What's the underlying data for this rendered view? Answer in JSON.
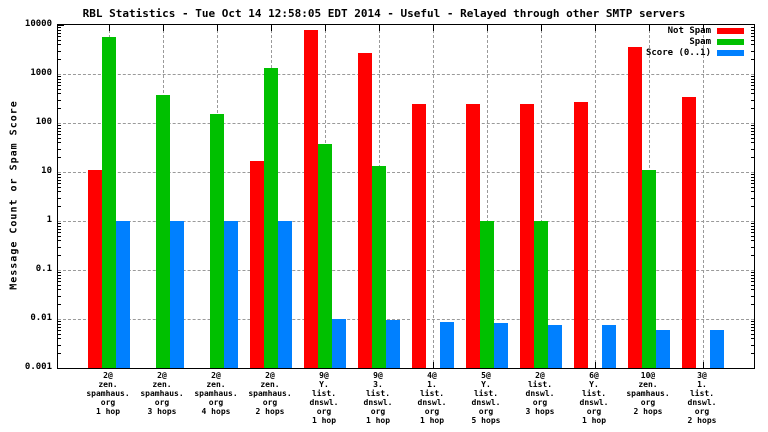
{
  "chart_data": {
    "type": "bar",
    "title": "RBL Statistics - Tue Oct 14 12:58:05 EDT 2014 - Useful - Relayed through other SMTP servers",
    "ylabel": "Message Count or Spam Score",
    "xlabel": "",
    "scale": "log",
    "ylim": [
      0.001,
      10000
    ],
    "grid": true,
    "legend_position": "top-right",
    "ytick_labels": [
      "10000",
      "1000",
      "100",
      "10",
      "1",
      "0.1",
      "0.01",
      "0.001"
    ],
    "categories": [
      [
        "2@",
        "zen.",
        "spamhaus.",
        "org",
        "1 hop"
      ],
      [
        "2@",
        "zen.",
        "spamhaus.",
        "org",
        "3 hops"
      ],
      [
        "2@",
        "zen.",
        "spamhaus.",
        "org",
        "4 hops"
      ],
      [
        "2@",
        "zen.",
        "spamhaus.",
        "org",
        "2 hops"
      ],
      [
        "9@",
        "Y.",
        "list.",
        "dnswl.",
        "org",
        "1 hop"
      ],
      [
        "9@",
        "3.",
        "list.",
        "dnswl.",
        "org",
        "1 hop"
      ],
      [
        "4@",
        "1.",
        "list.",
        "dnswl.",
        "org",
        "1 hop"
      ],
      [
        "5@",
        "Y.",
        "list.",
        "dnswl.",
        "org",
        "5 hops"
      ],
      [
        "2@",
        "list.",
        "dnswl.",
        "org",
        "3 hops"
      ],
      [
        "6@",
        "Y.",
        "list.",
        "dnswl.",
        "org",
        "1 hop"
      ],
      [
        "10@",
        "zen.",
        "spamhaus.",
        "org",
        "2 hops"
      ],
      [
        "3@",
        "1.",
        "list.",
        "dnswl.",
        "org",
        "2 hops"
      ]
    ],
    "series": [
      {
        "name": "Not Spam",
        "color": "#ff0000",
        "values": [
          11,
          null,
          null,
          17,
          7800,
          2700,
          240,
          245,
          250,
          270,
          3600,
          345
        ]
      },
      {
        "name": "Spam",
        "color": "#00c000",
        "values": [
          5800,
          370,
          150,
          1350,
          38,
          13,
          null,
          1.0,
          1.0,
          null,
          11,
          null
        ]
      },
      {
        "name": "Score (0..1)",
        "color": "#0080ff",
        "values": [
          1.0,
          1.0,
          1.0,
          1.0,
          0.01,
          0.0095,
          0.0088,
          0.0082,
          0.0075,
          0.0076,
          0.006,
          0.006
        ]
      }
    ],
    "colors": {
      "frame": "#000000",
      "gridline": "#9a9a9a",
      "background": "#ffffff"
    }
  }
}
